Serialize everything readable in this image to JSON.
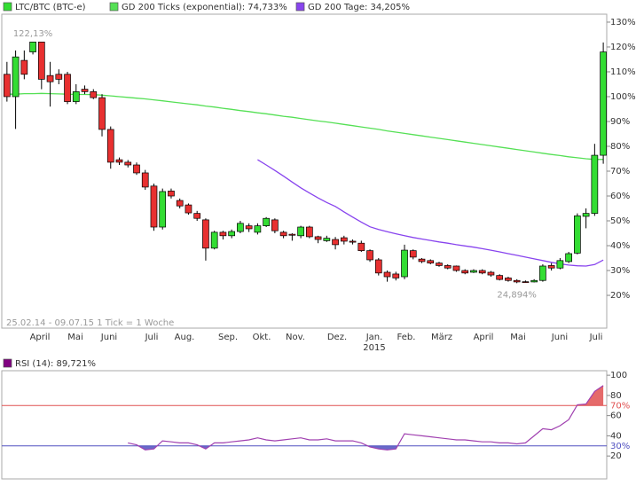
{
  "chart_data": {
    "type": "candlestick",
    "footer": "25.02.14 - 09.07.15   1 Tick = 1 Woche",
    "months": [
      "April",
      "Mai",
      "Juni",
      "Juli",
      "Aug.",
      "Sep.",
      "Okt.",
      "Nov.",
      "Dez.",
      "Jan.",
      "Feb.",
      "März",
      "April",
      "Mai",
      "Juni",
      "Juli"
    ],
    "year_label": "2015",
    "ylim": [
      6.8,
      133.2
    ],
    "yticks": [
      {
        "value": 20,
        "label": "20%"
      },
      {
        "value": 30,
        "label": "30%"
      },
      {
        "value": 40,
        "label": "40%"
      },
      {
        "value": 50,
        "label": "50%"
      },
      {
        "value": 60,
        "label": "60%"
      },
      {
        "value": 70,
        "label": "70%"
      },
      {
        "value": 80,
        "label": "80%"
      },
      {
        "value": 90,
        "label": "90%"
      },
      {
        "value": 100,
        "label": "100%"
      },
      {
        "value": 110,
        "label": "110%"
      },
      {
        "value": 120,
        "label": "120%"
      },
      {
        "value": 130,
        "label": "130%"
      }
    ],
    "annotations": [
      {
        "value": 122.13,
        "label": "122,13%"
      },
      {
        "value": 24.894,
        "label": "24,894%"
      }
    ],
    "candles": {
      "name": "LTC/BTC (BTC-e)",
      "up_color": "#33dd33",
      "down_color": "#e83030",
      "legend_color": "#33dd33",
      "open": [
        109,
        100,
        114.6,
        118,
        122,
        108.5,
        109,
        109,
        98,
        103,
        102,
        99.6,
        86.8,
        74.6,
        73.6,
        72.5,
        69.3,
        64,
        47.5,
        62,
        58.2,
        56.4,
        53,
        50.4,
        39,
        45.4,
        44,
        45.7,
        48,
        45.4,
        48,
        50.4,
        45.4,
        44.6,
        44,
        47.5,
        43.6,
        42,
        42.5,
        43.2,
        41.8,
        41,
        38,
        34.3,
        29.3,
        28.6,
        27.5,
        38,
        34.6,
        34,
        33,
        32,
        31.8,
        30,
        29.3,
        30,
        29.3,
        28,
        27,
        26,
        25.5,
        25.4,
        26,
        32,
        31,
        33.6,
        37,
        51.8,
        53,
        76.4
      ],
      "high": [
        114,
        118.6,
        118.6,
        122.13,
        122,
        114,
        111,
        110,
        105,
        104.5,
        103,
        101,
        88,
        75.5,
        74.5,
        73.5,
        70.5,
        65,
        63,
        63,
        59,
        57,
        54,
        51,
        46,
        46,
        46.5,
        50,
        49,
        49,
        51.5,
        51,
        46,
        45,
        48,
        48,
        44,
        44,
        43.5,
        44,
        42.5,
        42,
        38.5,
        35,
        30,
        29.5,
        40.4,
        38.5,
        35,
        34.5,
        33.5,
        32.5,
        32,
        30.5,
        30.5,
        30.5,
        29.8,
        28.5,
        27.5,
        26.5,
        26,
        26.5,
        32.5,
        33,
        35,
        37.5,
        53,
        55,
        81,
        121.8
      ],
      "low": [
        98,
        87,
        107,
        117,
        103,
        96,
        105,
        97,
        97,
        101,
        99,
        84,
        71,
        72.5,
        71.5,
        68.5,
        62.5,
        46,
        46.5,
        59,
        55,
        52.5,
        50,
        34,
        38.5,
        42.5,
        43,
        45,
        45.5,
        44.5,
        47.5,
        45,
        43,
        42,
        43,
        43,
        41,
        41.5,
        38.5,
        40.5,
        40.5,
        37.5,
        33.5,
        28,
        25.5,
        26,
        26.5,
        34.5,
        33,
        32.5,
        31.5,
        30.5,
        29.5,
        28.5,
        29,
        28.5,
        27.5,
        26,
        25.5,
        24.894,
        25,
        25.2,
        25.5,
        30,
        30.5,
        33,
        36.5,
        47,
        52,
        73
      ],
      "close": [
        100,
        116,
        109,
        122,
        107,
        106,
        107,
        98,
        102,
        102,
        99.6,
        86.8,
        73.6,
        73.6,
        72.5,
        69.3,
        63.6,
        47.5,
        61.8,
        60,
        56,
        53.2,
        51,
        39,
        45.4,
        44,
        45.7,
        49,
        46.8,
        48,
        51,
        46,
        44,
        44.2,
        47.5,
        43.6,
        42.5,
        43,
        40.4,
        41.8,
        41.4,
        38,
        34.3,
        29,
        27.5,
        27,
        38.2,
        35.4,
        33.6,
        33,
        32,
        31,
        30,
        29,
        30,
        29,
        28.2,
        26.4,
        26,
        25.4,
        25.2,
        26,
        31.8,
        31,
        34,
        36.8,
        52,
        53,
        76.4,
        118
      ]
    },
    "series": [
      {
        "name": "GD 200 Ticks (exponential): 74,733%",
        "color": "#55e055",
        "values": [
          101,
          101,
          101.2,
          101.2,
          101.3,
          101.2,
          101.1,
          101,
          100.9,
          100.9,
          100.8,
          100.6,
          100.3,
          100,
          99.7,
          99.4,
          99.1,
          98.7,
          98.3,
          97.9,
          97.5,
          97.1,
          96.7,
          96.2,
          95.8,
          95.3,
          94.9,
          94.4,
          94,
          93.5,
          93.1,
          92.6,
          92.1,
          91.7,
          91.2,
          90.7,
          90.2,
          89.8,
          89.3,
          88.8,
          88.3,
          87.8,
          87.3,
          86.8,
          86.2,
          85.7,
          85.2,
          84.7,
          84.2,
          83.7,
          83.2,
          82.7,
          82.2,
          81.7,
          81.2,
          80.7,
          80.2,
          79.7,
          79.2,
          78.7,
          78.2,
          77.7,
          77.2,
          76.7,
          76.3,
          75.8,
          75.4,
          75,
          74.7,
          74.733
        ]
      },
      {
        "name": "GD 200 Tage: 34,205%",
        "color": "#8844ee",
        "values": [
          null,
          null,
          null,
          null,
          null,
          null,
          null,
          null,
          null,
          null,
          null,
          null,
          null,
          null,
          null,
          null,
          null,
          null,
          null,
          null,
          null,
          null,
          null,
          null,
          null,
          null,
          null,
          null,
          null,
          74.6,
          72.5,
          70.3,
          68,
          65.6,
          63.3,
          61.2,
          59.2,
          57.4,
          55.8,
          53.6,
          51.5,
          49.5,
          47.6,
          46.5,
          45.6,
          44.8,
          44,
          43.3,
          42.7,
          42.1,
          41.5,
          41,
          40.4,
          39.9,
          39.4,
          38.8,
          38.2,
          37.5,
          36.8,
          36.1,
          35.4,
          34.7,
          34,
          33.3,
          32.7,
          32.2,
          31.9,
          31.8,
          32.4,
          34.205
        ]
      }
    ],
    "rsi": {
      "name": "RSI (14): 89,721%",
      "color": "#a040b0",
      "legend_color": "#800080",
      "ylim": [
        -2.7,
        104.5
      ],
      "yticks": [
        20,
        40,
        60,
        80,
        100
      ],
      "levels": [
        {
          "value": 70,
          "label": "70%",
          "color": "#e05050"
        },
        {
          "value": 30,
          "label": "30%",
          "color": "#5050c0"
        }
      ],
      "values": [
        null,
        null,
        null,
        null,
        null,
        null,
        null,
        null,
        null,
        null,
        null,
        null,
        null,
        null,
        33,
        31,
        26,
        27,
        35,
        34,
        33,
        33,
        31,
        27,
        33,
        33,
        34,
        35,
        36,
        38,
        36,
        35,
        36,
        37,
        38,
        36,
        36,
        37,
        35,
        35,
        35,
        33,
        29,
        27,
        26,
        27,
        42,
        41,
        40,
        39,
        38,
        37,
        36,
        36,
        35,
        34,
        34,
        33,
        33,
        32,
        33,
        40,
        47,
        46,
        50,
        56,
        70.8,
        71.5,
        84,
        89.721
      ]
    }
  }
}
